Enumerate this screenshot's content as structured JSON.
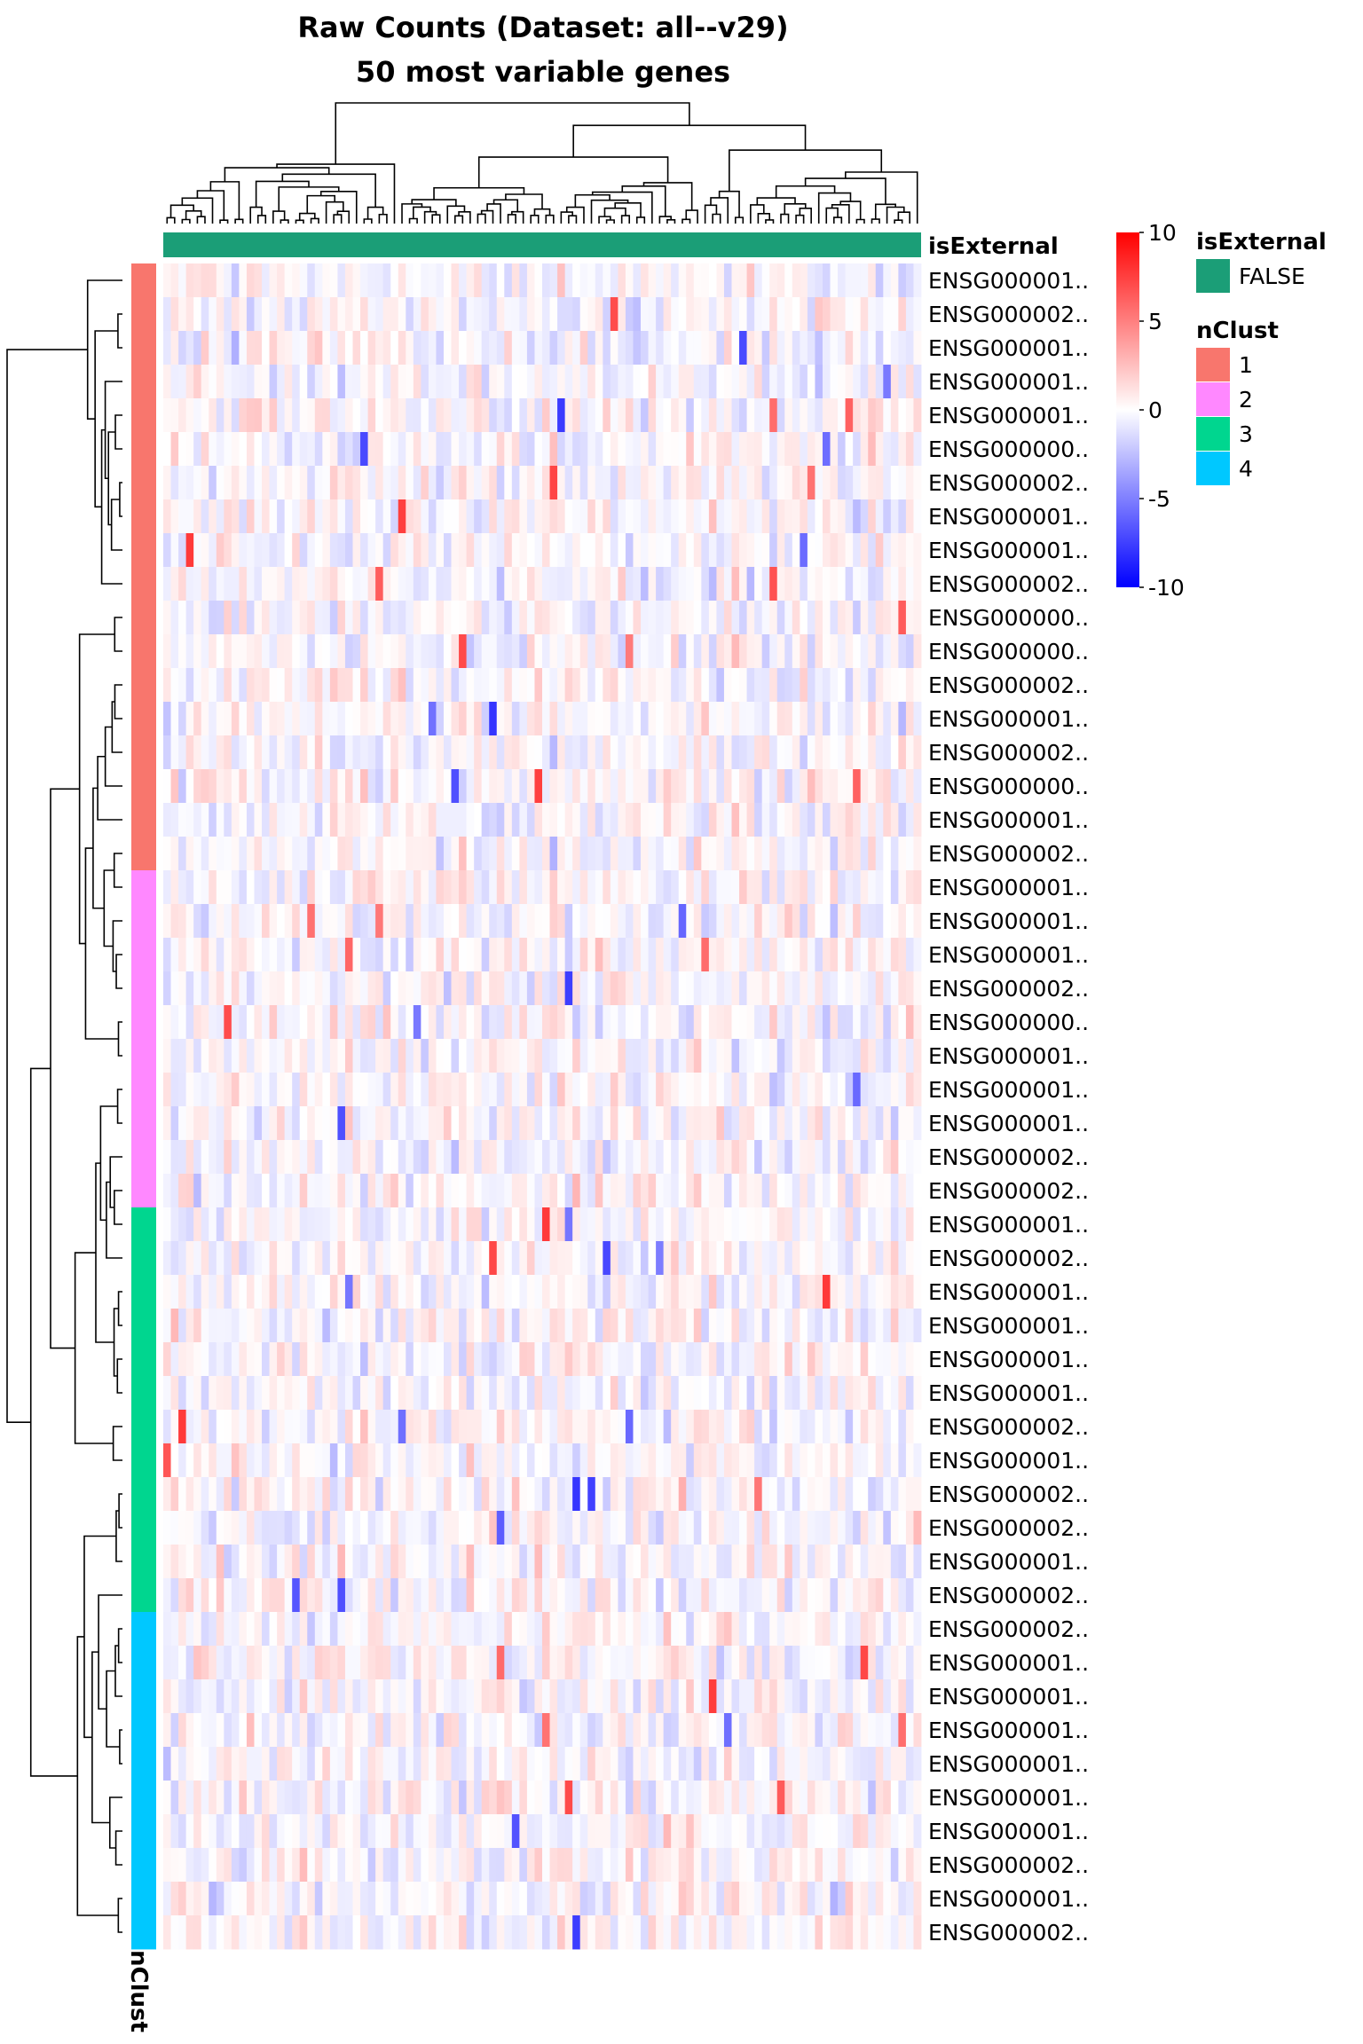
{
  "chart_data": {
    "type": "heatmap",
    "title": [
      "Raw Counts (Dataset: all--v29)",
      "50 most variable genes"
    ],
    "rows": [
      "ENSG000001..",
      "ENSG000002..",
      "ENSG000001..",
      "ENSG000001..",
      "ENSG000001..",
      "ENSG000000..",
      "ENSG000002..",
      "ENSG000001..",
      "ENSG000001..",
      "ENSG000002..",
      "ENSG000000..",
      "ENSG000000..",
      "ENSG000002..",
      "ENSG000001..",
      "ENSG000002..",
      "ENSG000000..",
      "ENSG000001..",
      "ENSG000002..",
      "ENSG000001..",
      "ENSG000001..",
      "ENSG000001..",
      "ENSG000002..",
      "ENSG000000..",
      "ENSG000001..",
      "ENSG000001..",
      "ENSG000001..",
      "ENSG000002..",
      "ENSG000002..",
      "ENSG000001..",
      "ENSG000002..",
      "ENSG000001..",
      "ENSG000001..",
      "ENSG000001..",
      "ENSG000001..",
      "ENSG000002..",
      "ENSG000001..",
      "ENSG000002..",
      "ENSG000002..",
      "ENSG000001..",
      "ENSG000002..",
      "ENSG000002..",
      "ENSG000001..",
      "ENSG000001..",
      "ENSG000001..",
      "ENSG000001..",
      "ENSG000001..",
      "ENSG000001..",
      "ENSG000002..",
      "ENSG000001..",
      "ENSG000002.."
    ],
    "row_clusters": [
      1,
      1,
      1,
      1,
      1,
      1,
      1,
      1,
      1,
      1,
      1,
      1,
      1,
      1,
      1,
      1,
      1,
      1,
      2,
      2,
      2,
      2,
      2,
      2,
      2,
      2,
      2,
      2,
      3,
      3,
      3,
      3,
      3,
      3,
      3,
      3,
      3,
      3,
      3,
      3,
      4,
      4,
      4,
      4,
      4,
      4,
      4,
      4,
      4,
      4
    ],
    "column_count": 100,
    "column_annotation": {
      "name": "isExternal",
      "value": "FALSE"
    },
    "row_annotation": {
      "name": "nClust"
    },
    "colorbar": {
      "ticks": [
        10,
        5,
        0,
        -5,
        -10
      ],
      "range": [
        -10,
        10
      ],
      "colors": [
        "#ff0000",
        "#ffffff",
        "#0000ff"
      ]
    },
    "legends": [
      {
        "title": "isExternal",
        "items": [
          {
            "label": "FALSE",
            "color": "#1b9e77"
          }
        ]
      },
      {
        "title": "nClust",
        "items": [
          {
            "label": "1",
            "color": "#f8766d"
          },
          {
            "label": "2",
            "color": "#ff88ff"
          },
          {
            "label": "3",
            "color": "#00d68f"
          },
          {
            "label": "4",
            "color": "#00c8ff"
          }
        ]
      }
    ]
  }
}
